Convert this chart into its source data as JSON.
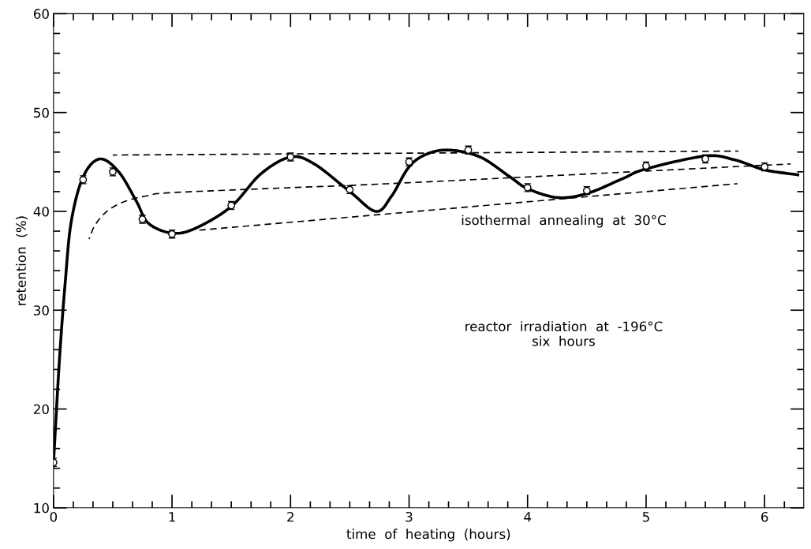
{
  "chart_data": {
    "type": "scatter",
    "xlabel": "time  of  heating  (hours)",
    "ylabel": "retention  (%)",
    "xlim": [
      0,
      6.33
    ],
    "ylim": [
      10,
      60
    ],
    "xticks": [
      0,
      {
        "value": 0.167,
        "label": null
      },
      {
        "value": 0.333,
        "label": null
      },
      {
        "value": 0.5,
        "label": null
      },
      {
        "value": 0.667,
        "label": null
      },
      {
        "value": 0.833,
        "label": null
      },
      1,
      {
        "value": 1.167,
        "label": null
      },
      {
        "value": 1.333,
        "label": null
      },
      {
        "value": 1.5,
        "label": null
      },
      {
        "value": 1.667,
        "label": null
      },
      {
        "value": 1.833,
        "label": null
      },
      2,
      {
        "value": 2.167,
        "label": null
      },
      {
        "value": 2.333,
        "label": null
      },
      {
        "value": 2.5,
        "label": null
      },
      {
        "value": 2.667,
        "label": null
      },
      {
        "value": 2.833,
        "label": null
      },
      3,
      {
        "value": 3.167,
        "label": null
      },
      {
        "value": 3.333,
        "label": null
      },
      {
        "value": 3.5,
        "label": null
      },
      {
        "value": 3.667,
        "label": null
      },
      {
        "value": 3.833,
        "label": null
      },
      4,
      {
        "value": 4.167,
        "label": null
      },
      {
        "value": 4.333,
        "label": null
      },
      {
        "value": 4.5,
        "label": null
      },
      {
        "value": 4.667,
        "label": null
      },
      {
        "value": 4.833,
        "label": null
      },
      5,
      {
        "value": 5.167,
        "label": null
      },
      {
        "value": 5.333,
        "label": null
      },
      {
        "value": 5.5,
        "label": null
      },
      {
        "value": 5.667,
        "label": null
      },
      {
        "value": 5.833,
        "label": null
      },
      6,
      {
        "value": 6.167,
        "label": null
      }
    ],
    "yticks": [
      10,
      {
        "value": 12,
        "label": null
      },
      {
        "value": 14,
        "label": null
      },
      {
        "value": 16,
        "label": null
      },
      {
        "value": 18,
        "label": null
      },
      20,
      {
        "value": 22,
        "label": null
      },
      {
        "value": 24,
        "label": null
      },
      {
        "value": 26,
        "label": null
      },
      {
        "value": 28,
        "label": null
      },
      30,
      {
        "value": 32,
        "label": null
      },
      {
        "value": 34,
        "label": null
      },
      {
        "value": 36,
        "label": null
      },
      {
        "value": 38,
        "label": null
      },
      40,
      {
        "value": 42,
        "label": null
      },
      {
        "value": 44,
        "label": null
      },
      {
        "value": 46,
        "label": null
      },
      {
        "value": 48,
        "label": null
      },
      50,
      {
        "value": 52,
        "label": null
      },
      {
        "value": 54,
        "label": null
      },
      {
        "value": 56,
        "label": null
      },
      {
        "value": 58,
        "label": null
      },
      60
    ],
    "grid": false,
    "legend": false,
    "series": [
      {
        "color": "#000000",
        "marker": "circle",
        "x": [
          0,
          0.25,
          0.5,
          0.75,
          1.0,
          1.5,
          2.0,
          2.5,
          3.0,
          3.5,
          4.0,
          4.5,
          5.0,
          5.5,
          6.0
        ],
        "values": [
          14.6,
          43.2,
          44.0,
          39.2,
          37.7,
          40.6,
          45.5,
          42.2,
          45.0,
          46.2,
          42.4,
          42.1,
          44.6,
          45.3,
          44.5
        ],
        "errors": [
          0.4,
          0.4,
          0.4,
          0.4,
          0.4,
          0.4,
          0.4,
          0.4,
          0.4,
          0.4,
          0.4,
          0.4,
          0.4,
          0.4,
          0.4
        ]
      },
      {
        "type": "line",
        "color": "#000000",
        "line_style": "solid",
        "x": [
          0,
          0.05,
          0.1,
          0.15,
          0.25,
          0.39,
          0.55,
          0.7,
          0.8,
          1.0,
          1.2,
          1.5,
          1.75,
          2.0,
          2.2,
          2.5,
          2.72,
          2.85,
          3.0,
          3.15,
          3.34,
          3.6,
          3.85,
          4.0,
          4.25,
          4.5,
          4.8,
          5.0,
          5.5,
          5.75,
          6.0,
          6.28
        ],
        "values": [
          14.6,
          25,
          33,
          39,
          43.5,
          45.3,
          44.0,
          41.0,
          38.8,
          37.8,
          38.3,
          40.5,
          43.8,
          45.5,
          44.8,
          42.0,
          40.0,
          41.5,
          44.5,
          45.8,
          46.2,
          45.5,
          43.5,
          42.3,
          41.4,
          41.8,
          43.3,
          44.3,
          45.6,
          45.2,
          44.2,
          43.7
        ]
      },
      {
        "type": "line",
        "color": "#000000",
        "line_style": "dashed",
        "x": [
          0.5,
          5.78
        ],
        "values": [
          45.7,
          46.1
        ]
      },
      {
        "type": "line",
        "color": "#000000",
        "line_style": "dashed",
        "x": [
          0.3,
          0.35,
          0.45,
          0.6,
          0.8,
          1.0,
          2.0,
          3.0,
          6.22
        ],
        "values": [
          37.2,
          38.6,
          40.0,
          41.0,
          41.6,
          41.9,
          42.4,
          42.9,
          44.8
        ]
      },
      {
        "type": "line",
        "color": "#000000",
        "line_style": "dashed",
        "x": [
          1.23,
          5.77
        ],
        "values": [
          38.1,
          42.8
        ]
      }
    ],
    "annotations": [
      "isothermal  annealing  at  30°C",
      "reactor  irradiation  at  -196°C\nsix  hours"
    ]
  }
}
